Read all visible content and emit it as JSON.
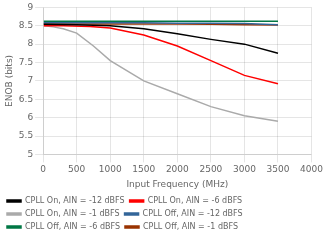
{
  "chart_data": {
    "type": "line",
    "xlabel": "Input Frequency (MHz)",
    "ylabel": "ENOB (bits)",
    "xlim": [
      0,
      4000
    ],
    "ylim": [
      5,
      9
    ],
    "xticks": [
      0,
      500,
      1000,
      1500,
      2000,
      2500,
      3000,
      3500,
      4000
    ],
    "yticks": [
      5,
      5.5,
      6,
      6.5,
      7,
      7.5,
      8,
      8.5,
      9
    ],
    "grid": true,
    "legend": "lower left",
    "series": [
      {
        "name": "CPLL On, AIN = -12 dBFS",
        "color": "#000000",
        "x": [
          10,
          500,
          1000,
          1500,
          2000,
          2500,
          3000,
          3500
        ],
        "values": [
          8.54,
          8.53,
          8.5,
          8.42,
          8.28,
          8.13,
          8.0,
          7.75
        ]
      },
      {
        "name": "CPLL On, AIN = -6 dBFS",
        "color": "#ff0000",
        "x": [
          10,
          300,
          700,
          1000,
          1500,
          2000,
          2500,
          3000,
          3500
        ],
        "values": [
          8.5,
          8.5,
          8.48,
          8.44,
          8.25,
          7.95,
          7.55,
          7.15,
          6.92
        ]
      },
      {
        "name": "CPLL On, AIN = -1 dBFS",
        "color": "#aaaaaa",
        "x": [
          10,
          150,
          300,
          500,
          750,
          1000,
          1500,
          2000,
          2500,
          3000,
          3500
        ],
        "values": [
          8.5,
          8.47,
          8.42,
          8.3,
          7.95,
          7.55,
          7.0,
          6.65,
          6.3,
          6.05,
          5.9
        ]
      },
      {
        "name": "CPLL Off, AIN = -12 dBFS",
        "color": "#336699",
        "x": [
          10,
          500,
          1000,
          1500,
          2000,
          2500,
          3000,
          3500
        ],
        "values": [
          8.58,
          8.58,
          8.58,
          8.58,
          8.57,
          8.57,
          8.56,
          8.53
        ]
      },
      {
        "name": "CPLL Off, AIN = -6 dBFS",
        "color": "#007744",
        "x": [
          10,
          500,
          1000,
          1500,
          2000,
          2500,
          3000,
          3500
        ],
        "values": [
          8.62,
          8.62,
          8.62,
          8.62,
          8.62,
          8.62,
          8.62,
          8.62
        ]
      },
      {
        "name": "CPLL Off, AIN = -1 dBFS",
        "color": "#993300",
        "x": [
          10,
          500,
          1000,
          1500,
          2000,
          2500,
          3000,
          3500
        ],
        "values": [
          8.55,
          8.55,
          8.55,
          8.55,
          8.55,
          8.54,
          8.53,
          8.52
        ]
      }
    ]
  }
}
